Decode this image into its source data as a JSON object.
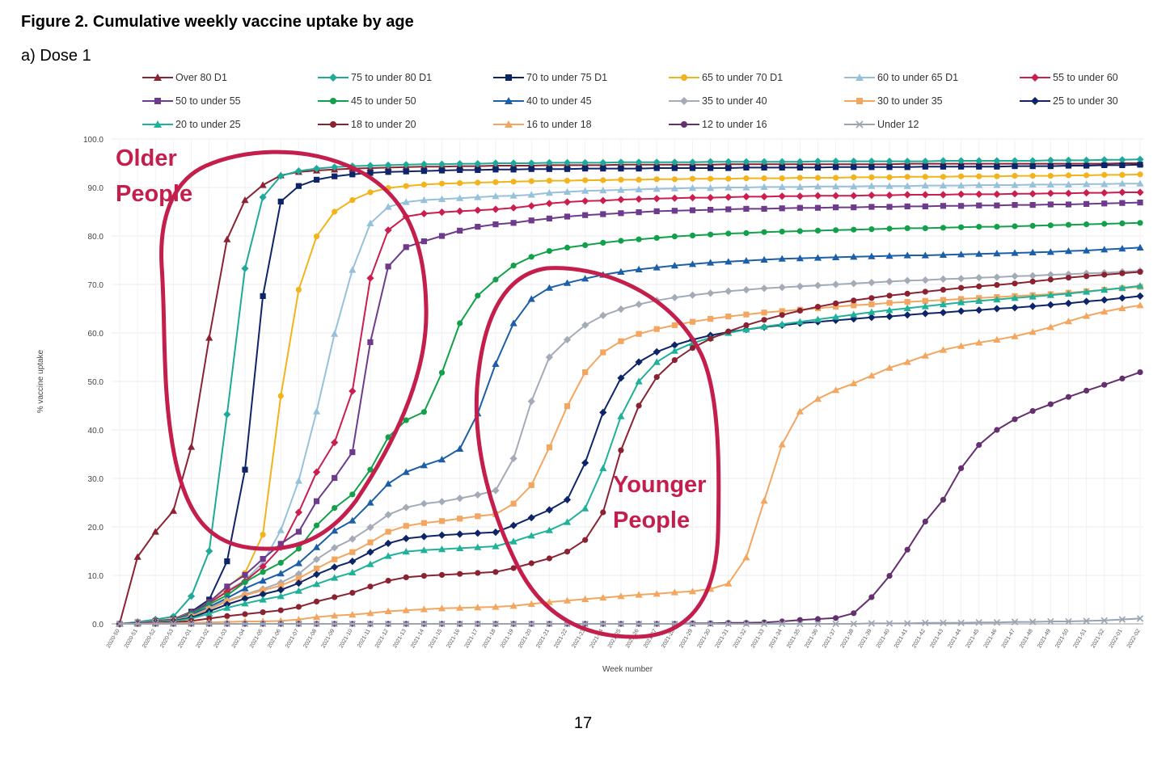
{
  "figure": {
    "title": "Figure 2. Cumulative weekly vaccine uptake by age",
    "subtitle": "a) Dose 1",
    "page_number": "17"
  },
  "chart_data": {
    "type": "line",
    "title": "",
    "xlabel": "Week number",
    "ylabel": "% vaccine uptake",
    "ylim": [
      0,
      100
    ],
    "yticks": [
      0,
      10,
      20,
      30,
      40,
      50,
      60,
      70,
      80,
      90,
      100
    ],
    "ytick_labels": [
      "0.0",
      "10.0",
      "20.0",
      "30.0",
      "40.0",
      "50.0",
      "60.0",
      "70.0",
      "80.0",
      "90.0",
      "100.0"
    ],
    "grid": true,
    "legend_position": "top",
    "x": [
      "2020-50",
      "2020-51",
      "2020-52",
      "2020-53",
      "2021-01",
      "2021-02",
      "2021-03",
      "2021-04",
      "2021-05",
      "2021-06",
      "2021-07",
      "2021-08",
      "2021-09",
      "2021-10",
      "2021-11",
      "2021-12",
      "2021-13",
      "2021-14",
      "2021-15",
      "2021-16",
      "2021-17",
      "2021-18",
      "2021-19",
      "2021-20",
      "2021-21",
      "2021-22",
      "2021-23",
      "2021-24",
      "2021-25",
      "2021-26",
      "2021-27",
      "2021-28",
      "2021-29",
      "2021-30",
      "2021-31",
      "2021-32",
      "2021-33",
      "2021-34",
      "2021-35",
      "2021-36",
      "2021-37",
      "2021-38",
      "2021-39",
      "2021-40",
      "2021-41",
      "2021-42",
      "2021-43",
      "2021-44",
      "2021-45",
      "2021-46",
      "2021-47",
      "2021-48",
      "2021-49",
      "2021-50",
      "2021-51",
      "2021-52",
      "2022-01",
      "2022-02"
    ],
    "series": [
      {
        "name": "Over 80 D1",
        "color": "#8B2232",
        "marker": "triangle",
        "values": [
          0.1,
          13.8,
          19,
          23.3,
          36.5,
          59,
          79.3,
          87.4,
          90.5,
          92.5,
          93.2,
          93.5,
          93.7,
          93.9,
          94,
          94.1,
          94.2,
          94.3,
          94.3,
          94.4,
          94.4,
          94.5,
          94.5,
          94.5,
          94.6,
          94.6,
          94.6,
          94.6,
          94.7,
          94.7,
          94.7,
          94.7,
          94.7,
          94.7,
          94.8,
          94.8,
          94.8,
          94.8,
          94.8,
          94.8,
          94.8,
          94.8,
          94.8,
          94.8,
          94.9,
          94.9,
          94.9,
          94.9,
          94.9,
          94.9,
          94.9,
          94.9,
          94.9,
          94.9,
          94.9,
          94.9,
          95,
          95
        ]
      },
      {
        "name": "75 to under 80 D1",
        "color": "#1FA998",
        "marker": "diamond",
        "values": [
          0,
          0.4,
          0.9,
          1.5,
          5.7,
          15,
          43.2,
          73.3,
          88,
          92.4,
          93.4,
          93.9,
          94.2,
          94.4,
          94.5,
          94.6,
          94.7,
          94.8,
          94.8,
          94.9,
          94.9,
          95,
          95,
          95,
          95.1,
          95.1,
          95.1,
          95.1,
          95.2,
          95.2,
          95.2,
          95.2,
          95.2,
          95.3,
          95.3,
          95.3,
          95.3,
          95.3,
          95.3,
          95.4,
          95.4,
          95.4,
          95.4,
          95.4,
          95.4,
          95.4,
          95.5,
          95.5,
          95.5,
          95.5,
          95.5,
          95.5,
          95.6,
          95.6,
          95.6,
          95.7,
          95.7,
          95.8
        ]
      },
      {
        "name": "70 to under 75 D1",
        "color": "#0E2469",
        "marker": "square",
        "values": [
          0,
          0.3,
          0.6,
          1,
          2.5,
          5,
          12.9,
          31.8,
          67.6,
          87.1,
          90.3,
          91.6,
          92.3,
          92.7,
          93,
          93.2,
          93.3,
          93.4,
          93.5,
          93.6,
          93.6,
          93.7,
          93.7,
          93.8,
          93.8,
          93.8,
          93.9,
          93.9,
          93.9,
          93.9,
          94,
          94,
          94,
          94,
          94,
          94.1,
          94.1,
          94.1,
          94.1,
          94.1,
          94.2,
          94.2,
          94.2,
          94.2,
          94.2,
          94.3,
          94.3,
          94.3,
          94.3,
          94.3,
          94.4,
          94.4,
          94.4,
          94.5,
          94.5,
          94.6,
          94.6,
          94.7
        ]
      },
      {
        "name": "65 to under 70 D1",
        "color": "#F2B31B",
        "marker": "circle",
        "values": [
          0,
          0.3,
          0.6,
          1,
          2.3,
          4.4,
          7.5,
          10.5,
          18.4,
          47,
          68.9,
          79.9,
          85,
          87.4,
          89,
          89.9,
          90.3,
          90.6,
          90.8,
          90.9,
          91,
          91.1,
          91.2,
          91.3,
          91.4,
          91.4,
          91.5,
          91.5,
          91.6,
          91.6,
          91.7,
          91.7,
          91.8,
          91.8,
          91.8,
          91.9,
          91.9,
          91.9,
          92,
          92,
          92,
          92.1,
          92.1,
          92.1,
          92.2,
          92.2,
          92.2,
          92.3,
          92.3,
          92.3,
          92.4,
          92.4,
          92.4,
          92.5,
          92.5,
          92.6,
          92.6,
          92.7
        ]
      },
      {
        "name": "60 to under 65 D1",
        "color": "#97C1DB",
        "marker": "triangle",
        "values": [
          0,
          0.3,
          0.6,
          0.9,
          2.2,
          4.3,
          6.8,
          9,
          12.6,
          19.3,
          29.5,
          43.8,
          59.8,
          73,
          82.6,
          86,
          87,
          87.4,
          87.6,
          87.8,
          88,
          88.2,
          88.3,
          88.5,
          88.9,
          89.1,
          89.3,
          89.4,
          89.5,
          89.6,
          89.7,
          89.8,
          89.9,
          89.9,
          90,
          90,
          90.1,
          90.1,
          90.1,
          90.2,
          90.2,
          90.2,
          90.3,
          90.3,
          90.3,
          90.4,
          90.4,
          90.4,
          90.5,
          90.5,
          90.5,
          90.6,
          90.6,
          90.6,
          90.7,
          90.7,
          90.8,
          90.8
        ]
      },
      {
        "name": "55 to under 60",
        "color": "#CB1E4F",
        "marker": "diamond",
        "values": [
          0,
          0.3,
          0.6,
          0.9,
          2.2,
          4.3,
          6.6,
          8.8,
          11.8,
          15.8,
          23,
          31.3,
          37.4,
          48,
          71.3,
          81.2,
          84,
          84.6,
          84.9,
          85.1,
          85.3,
          85.5,
          85.8,
          86.2,
          86.7,
          87,
          87.2,
          87.3,
          87.5,
          87.6,
          87.7,
          87.8,
          87.9,
          87.9,
          88,
          88.1,
          88.1,
          88.2,
          88.2,
          88.3,
          88.3,
          88.3,
          88.4,
          88.4,
          88.5,
          88.5,
          88.5,
          88.6,
          88.6,
          88.6,
          88.7,
          88.7,
          88.8,
          88.8,
          88.9,
          88.9,
          89,
          89
        ]
      },
      {
        "name": "50 to under 55",
        "color": "#6E3A8C",
        "marker": "square",
        "values": [
          0,
          0.3,
          0.6,
          0.9,
          2.2,
          4.5,
          7.7,
          10.1,
          13.4,
          16.5,
          19,
          25.3,
          30.1,
          35.4,
          58.1,
          73.7,
          77.7,
          78.9,
          80,
          81.1,
          81.9,
          82.4,
          82.7,
          83.2,
          83.6,
          84,
          84.3,
          84.5,
          84.7,
          84.9,
          85.1,
          85.2,
          85.3,
          85.4,
          85.5,
          85.6,
          85.6,
          85.7,
          85.8,
          85.8,
          85.9,
          85.9,
          86,
          86,
          86.1,
          86.1,
          86.2,
          86.2,
          86.3,
          86.3,
          86.4,
          86.4,
          86.5,
          86.5,
          86.6,
          86.7,
          86.8,
          86.9
        ]
      },
      {
        "name": "45 to under 50",
        "color": "#12A14A",
        "marker": "circle",
        "values": [
          0,
          0.3,
          0.5,
          0.8,
          2,
          4,
          5.9,
          8.6,
          10.7,
          12.6,
          15.5,
          20.3,
          23.9,
          26.7,
          31.8,
          38.5,
          42,
          43.7,
          51.8,
          62,
          67.7,
          71,
          73.9,
          75.7,
          76.9,
          77.6,
          78.1,
          78.6,
          79,
          79.3,
          79.6,
          79.9,
          80.1,
          80.3,
          80.5,
          80.6,
          80.8,
          80.9,
          81,
          81.1,
          81.2,
          81.3,
          81.4,
          81.5,
          81.6,
          81.6,
          81.7,
          81.8,
          81.9,
          81.9,
          82,
          82.1,
          82.2,
          82.3,
          82.4,
          82.5,
          82.6,
          82.7
        ]
      },
      {
        "name": "40 to under 45",
        "color": "#1C5FA8",
        "marker": "triangle",
        "values": [
          0,
          0.3,
          0.5,
          0.8,
          1.8,
          3.5,
          5.3,
          7.3,
          8.9,
          10.4,
          12.5,
          15.8,
          19.2,
          21.3,
          25,
          28.9,
          31.3,
          32.7,
          33.9,
          36.1,
          43.4,
          53.6,
          62,
          67,
          69.3,
          70.3,
          71.2,
          72,
          72.6,
          73.1,
          73.5,
          73.9,
          74.2,
          74.5,
          74.7,
          74.9,
          75.1,
          75.3,
          75.4,
          75.5,
          75.6,
          75.7,
          75.8,
          75.9,
          76,
          76,
          76.1,
          76.2,
          76.3,
          76.4,
          76.5,
          76.6,
          76.7,
          76.9,
          77,
          77.2,
          77.4,
          77.6
        ]
      },
      {
        "name": "35 to under 40",
        "color": "#A3ABB7",
        "marker": "diamond",
        "values": [
          0,
          0.3,
          0.5,
          0.7,
          1.6,
          3.2,
          4.8,
          6.1,
          7.2,
          8.5,
          10.3,
          13.3,
          15.7,
          17.5,
          19.9,
          22.5,
          24,
          24.8,
          25.2,
          25.9,
          26.6,
          27.5,
          34.1,
          45.9,
          55,
          58.6,
          61.6,
          63.6,
          64.9,
          65.9,
          66.7,
          67.3,
          67.8,
          68.2,
          68.6,
          68.9,
          69.2,
          69.4,
          69.6,
          69.8,
          70,
          70.2,
          70.4,
          70.6,
          70.8,
          70.9,
          71.1,
          71.2,
          71.4,
          71.5,
          71.7,
          71.8,
          72,
          72.1,
          72.3,
          72.4,
          72.6,
          72.8
        ]
      },
      {
        "name": "30 to under 35",
        "color": "#F2A660",
        "marker": "square",
        "values": [
          0,
          0.2,
          0.4,
          0.7,
          1.5,
          3,
          4.6,
          5.9,
          6.9,
          7.9,
          9.4,
          11.4,
          13.3,
          14.8,
          16.8,
          19,
          20.2,
          20.8,
          21.2,
          21.7,
          22.2,
          22.6,
          24.8,
          28.6,
          36.4,
          44.9,
          51.9,
          56,
          58.3,
          59.8,
          60.8,
          61.6,
          62.3,
          62.9,
          63.4,
          63.8,
          64.2,
          64.5,
          64.8,
          65.1,
          65.4,
          65.7,
          65.9,
          66.2,
          66.4,
          66.6,
          66.8,
          67,
          67.2,
          67.4,
          67.6,
          67.8,
          68,
          68.3,
          68.6,
          68.9,
          69.2,
          69.5
        ]
      },
      {
        "name": "25 to under 30",
        "color": "#0E2469",
        "marker": "diamond",
        "values": [
          0,
          0.2,
          0.4,
          0.6,
          1.3,
          2.6,
          4,
          5.2,
          6.1,
          7,
          8.4,
          10.2,
          11.7,
          12.9,
          14.8,
          16.6,
          17.6,
          18,
          18.3,
          18.5,
          18.7,
          18.9,
          20.3,
          21.9,
          23.5,
          25.6,
          33.2,
          43.6,
          50.7,
          54,
          56.1,
          57.5,
          58.6,
          59.5,
          60.2,
          60.7,
          61.2,
          61.6,
          62,
          62.3,
          62.6,
          62.9,
          63.2,
          63.4,
          63.7,
          64,
          64.2,
          64.5,
          64.7,
          65,
          65.2,
          65.5,
          65.8,
          66.1,
          66.5,
          66.8,
          67.2,
          67.6
        ]
      },
      {
        "name": "20 to under 25",
        "color": "#20B199",
        "marker": "triangle",
        "values": [
          0,
          0.2,
          0.3,
          0.5,
          1.1,
          2.1,
          3.3,
          4.2,
          5,
          5.7,
          6.8,
          8.2,
          9.5,
          10.6,
          12.3,
          14,
          14.9,
          15.2,
          15.4,
          15.6,
          15.8,
          16,
          17,
          18.2,
          19.3,
          21,
          23.8,
          32.1,
          42.8,
          50,
          54,
          56.3,
          57.9,
          59,
          60,
          60.7,
          61.3,
          61.8,
          62.3,
          62.8,
          63.3,
          63.8,
          64.3,
          64.7,
          65.1,
          65.5,
          65.9,
          66.3,
          66.6,
          66.9,
          67.2,
          67.5,
          67.8,
          68.1,
          68.5,
          68.9,
          69.3,
          69.7
        ]
      },
      {
        "name": "18 to under 20",
        "color": "#8B2232",
        "marker": "circle",
        "values": [
          0,
          0.1,
          0.2,
          0.3,
          0.6,
          1.1,
          1.6,
          2,
          2.4,
          2.8,
          3.5,
          4.6,
          5.5,
          6.4,
          7.7,
          8.9,
          9.6,
          9.9,
          10.1,
          10.3,
          10.5,
          10.7,
          11.5,
          12.5,
          13.5,
          14.9,
          17.3,
          23,
          35.8,
          45,
          50.9,
          54.4,
          56.9,
          58.8,
          60.3,
          61.6,
          62.7,
          63.7,
          64.6,
          65.4,
          66.1,
          66.7,
          67.2,
          67.7,
          68.1,
          68.5,
          68.9,
          69.3,
          69.6,
          69.9,
          70.2,
          70.6,
          71,
          71.4,
          71.7,
          72,
          72.3,
          72.6
        ]
      },
      {
        "name": "16 to under 18",
        "color": "#F2A660",
        "marker": "triangle",
        "values": [
          0,
          0,
          0.1,
          0.1,
          0.2,
          0.3,
          0.4,
          0.5,
          0.5,
          0.6,
          0.9,
          1.4,
          1.7,
          1.9,
          2.2,
          2.6,
          2.8,
          3,
          3.2,
          3.3,
          3.4,
          3.5,
          3.7,
          4.1,
          4.5,
          4.8,
          5.1,
          5.4,
          5.7,
          6,
          6.2,
          6.5,
          6.7,
          7.2,
          8.3,
          13.7,
          25.4,
          37,
          43.8,
          46.4,
          48.2,
          49.6,
          51.2,
          52.8,
          54,
          55.3,
          56.5,
          57.3,
          58,
          58.6,
          59.3,
          60.2,
          61.2,
          62.4,
          63.5,
          64.4,
          65.1,
          65.7
        ]
      },
      {
        "name": "12 to under 16",
        "color": "#64306E",
        "marker": "circle",
        "values": [
          0,
          0,
          0,
          0,
          0,
          0,
          0,
          0,
          0,
          0,
          0,
          0,
          0,
          0,
          0,
          0,
          0,
          0,
          0,
          0,
          0,
          0,
          0,
          0,
          0,
          0,
          0,
          0,
          0,
          0,
          0,
          0,
          0.1,
          0.1,
          0.2,
          0.2,
          0.3,
          0.5,
          0.8,
          1,
          1.2,
          2.2,
          5.5,
          9.9,
          15.3,
          21.1,
          25.6,
          32.1,
          36.9,
          40,
          42.2,
          43.9,
          45.3,
          46.8,
          48.1,
          49.3,
          50.6,
          51.9
        ]
      },
      {
        "name": "Under 12",
        "color": "#9AA4B2",
        "marker": "x",
        "values": [
          0,
          0,
          0,
          0,
          0,
          0,
          0,
          0,
          0,
          0,
          0,
          0,
          0,
          0,
          0,
          0,
          0,
          0,
          0,
          0,
          0,
          0,
          0,
          0,
          0,
          0,
          0,
          0,
          0,
          0,
          0,
          0,
          0,
          0,
          0,
          0,
          0,
          0,
          0,
          0,
          0,
          0,
          0.1,
          0.1,
          0.1,
          0.2,
          0.2,
          0.2,
          0.3,
          0.3,
          0.4,
          0.4,
          0.5,
          0.5,
          0.6,
          0.7,
          0.9,
          1.1
        ]
      }
    ],
    "annotations": [
      {
        "id": "older",
        "lines": [
          "Older",
          "People"
        ],
        "color": "#C41E4D"
      },
      {
        "id": "younger",
        "lines": [
          "Younger",
          "People"
        ],
        "color": "#C41E4D"
      }
    ]
  }
}
